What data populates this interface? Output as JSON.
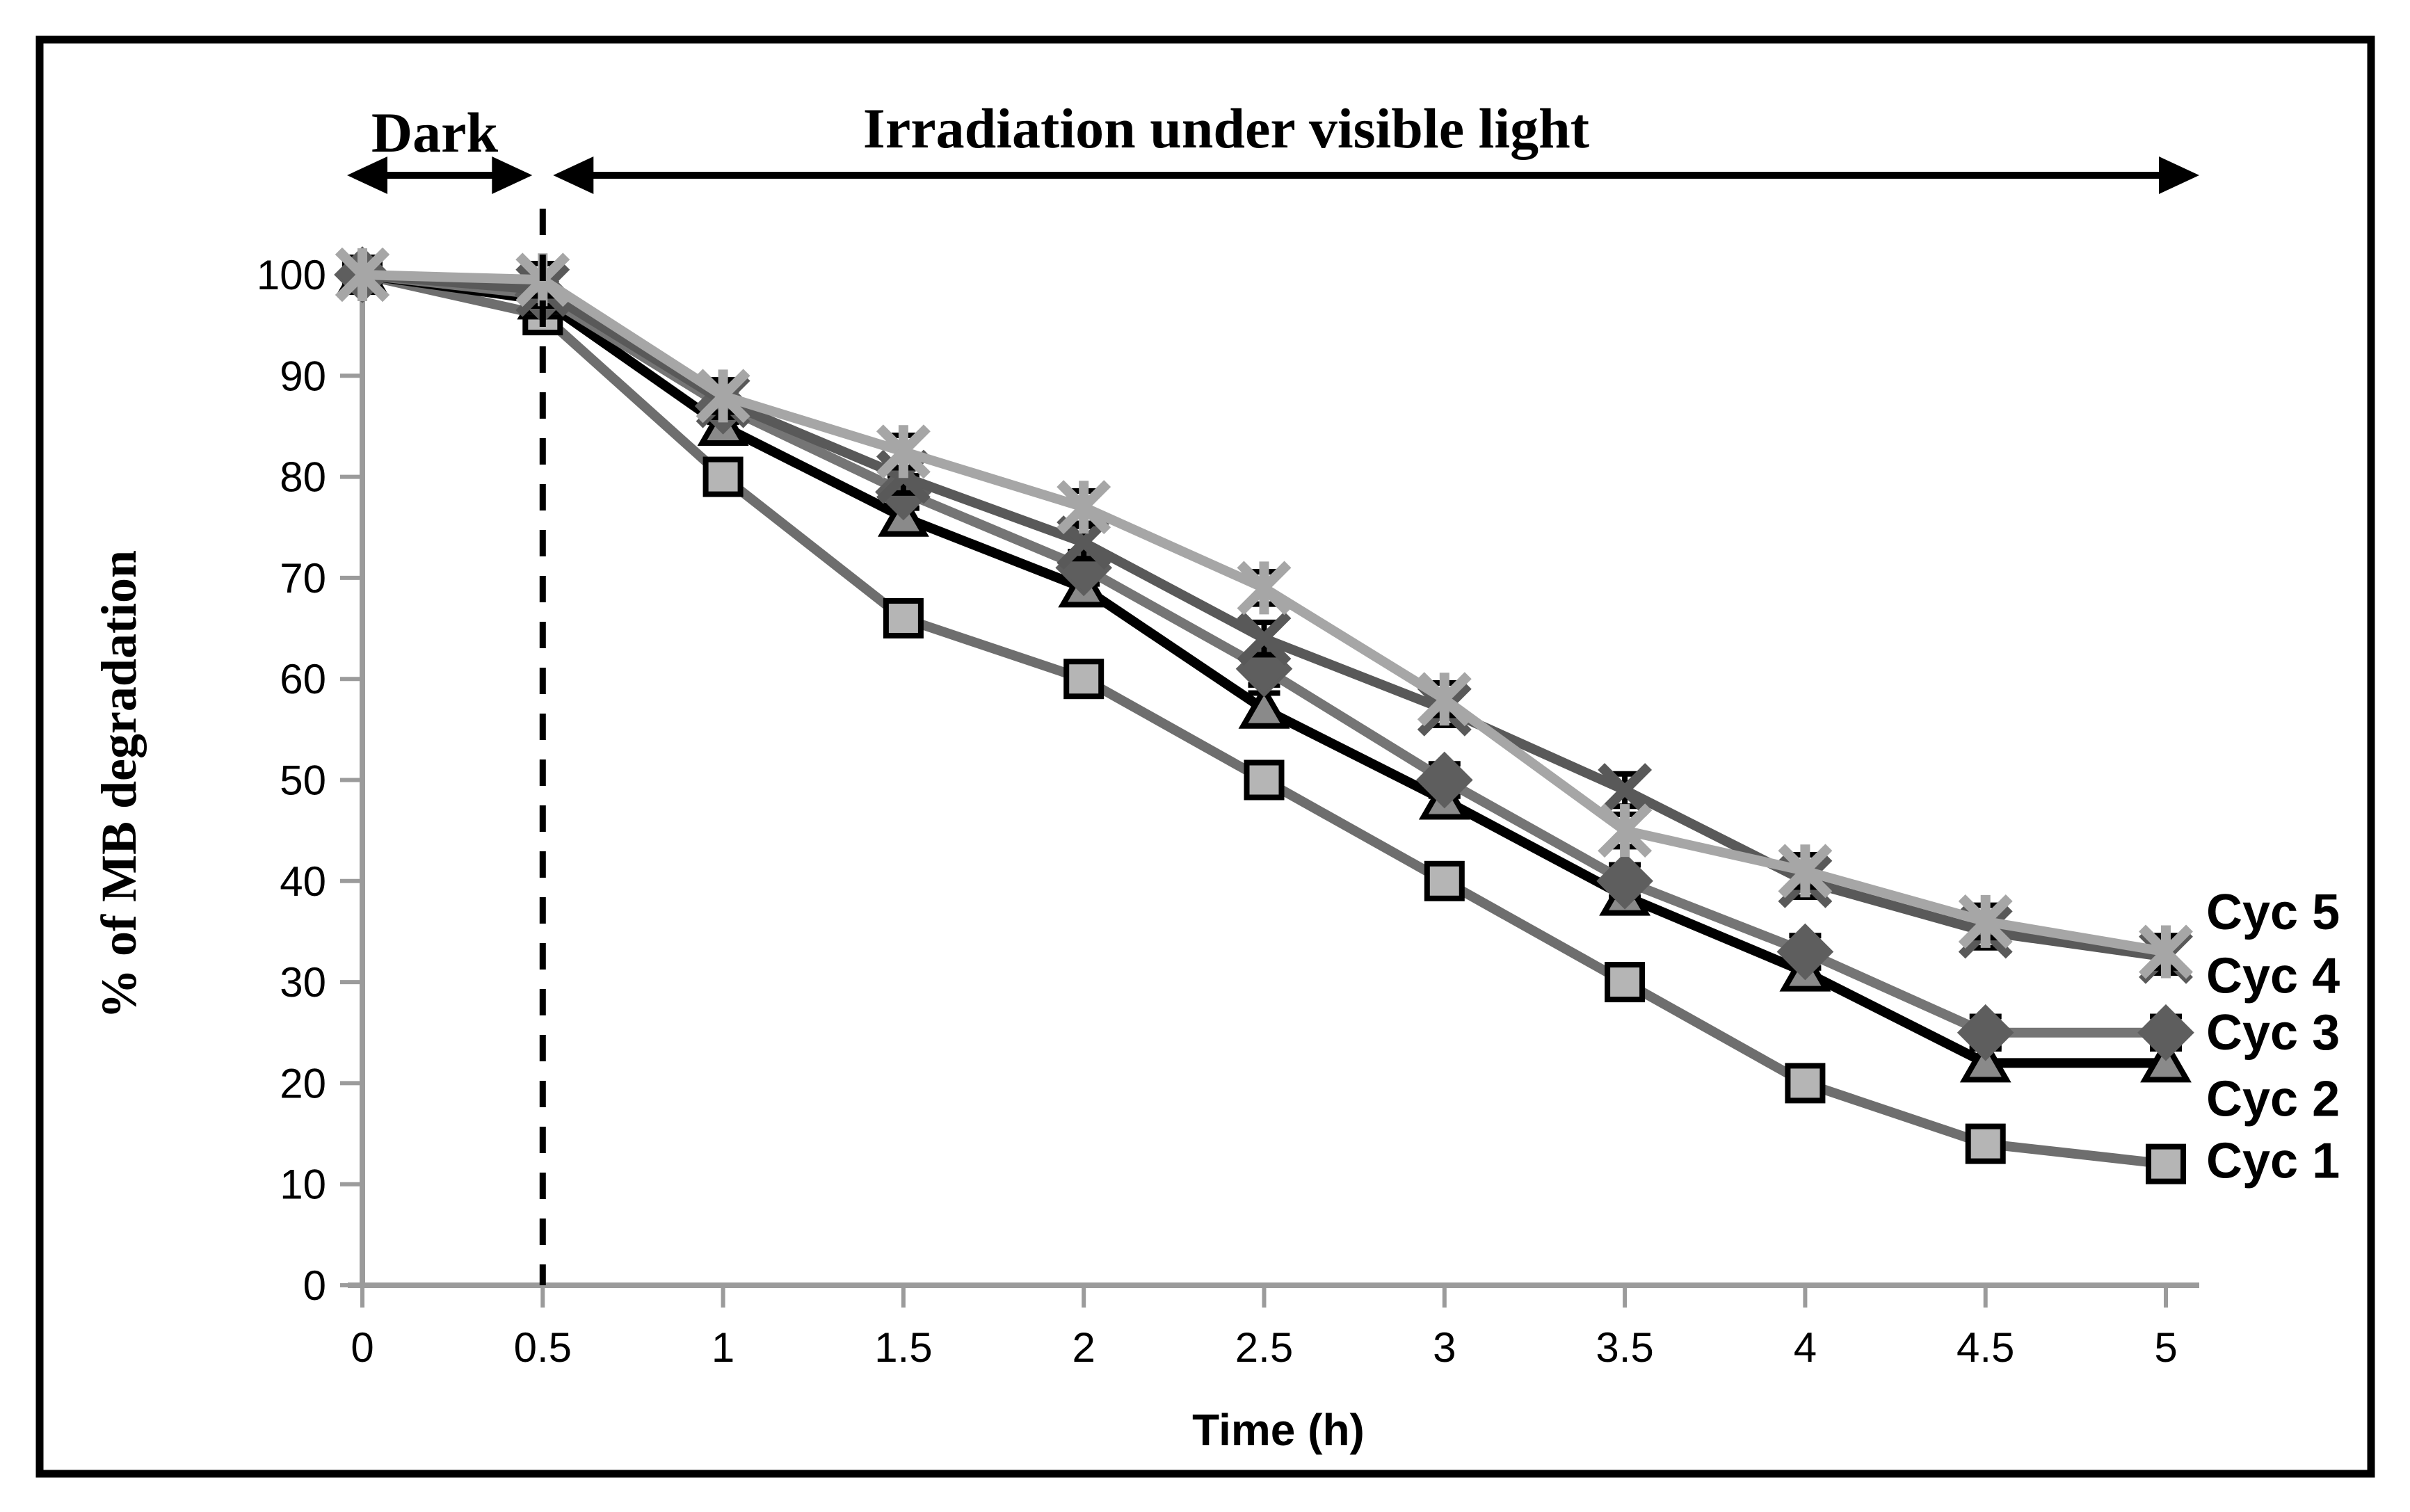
{
  "figure": {
    "ylabel": "% of MB degradation",
    "xlabel": "Time (h)",
    "annotations": {
      "dark_label": "Dark",
      "irradiation_label": "Irradiation under visible light"
    }
  },
  "chart_data": {
    "type": "line",
    "title": "",
    "xlabel": "Time (h)",
    "ylabel": "% of MB degradation",
    "x": [
      0,
      0.5,
      1,
      1.5,
      2,
      2.5,
      3,
      3.5,
      4,
      4.5,
      5
    ],
    "xtick_labels": [
      "0",
      "0.5",
      "1",
      "1.5",
      "2",
      "2.5",
      "3",
      "3.5",
      "4",
      "4.5",
      "5"
    ],
    "ytick_labels": [
      "0",
      "10",
      "20",
      "30",
      "40",
      "50",
      "60",
      "70",
      "80",
      "90",
      "100"
    ],
    "ylim": [
      0,
      100
    ],
    "xlim": [
      0,
      5
    ],
    "grid": false,
    "error_bar_plus_minus": 1.6,
    "dark_region_hours": [
      0,
      0.5
    ],
    "irradiation_region_hours": [
      0.5,
      5
    ],
    "dashed_divider_at_h": 0.5,
    "legend_position": "right-of-last-point",
    "axis_color": "#9b9b9b",
    "annotation_color": "#000000",
    "series": [
      {
        "name": "Cyc 1",
        "marker": "square",
        "line_color": "#6e6e6e",
        "marker_fill": "#b5b5b5",
        "marker_stroke": "#000000",
        "label_at_value": 12.3,
        "values": [
          100,
          96,
          80,
          66,
          60,
          50,
          40,
          30,
          20,
          14,
          12
        ]
      },
      {
        "name": "Cyc 2",
        "marker": "triangle",
        "line_color": "#000000",
        "marker_fill": "#8a8a8a",
        "marker_stroke": "#000000",
        "label_at_value": 18.4,
        "values": [
          100,
          97.5,
          85,
          76,
          69,
          57,
          48,
          38.5,
          31,
          22,
          22
        ]
      },
      {
        "name": "Cyc 3",
        "marker": "diamond",
        "line_color": "#757575",
        "marker_fill": "#5e5e5e",
        "marker_stroke": "#5e5e5e",
        "label_at_value": 25,
        "values": [
          100,
          98,
          87,
          78.5,
          71,
          61,
          50,
          40,
          33,
          25,
          25
        ]
      },
      {
        "name": "Cyc 4",
        "marker": "x",
        "line_color": "#595959",
        "marker_fill": "#595959",
        "marker_stroke": "#595959",
        "label_at_value": 30.6,
        "values": [
          100,
          98.5,
          87.5,
          80,
          73.5,
          64,
          57,
          49,
          40,
          35,
          32.5
        ]
      },
      {
        "name": "Cyc 5",
        "marker": "asterisk",
        "line_color": "#a6a6a6",
        "marker_fill": "#a6a6a6",
        "marker_stroke": "#a6a6a6",
        "label_at_value": 36.9,
        "values": [
          100,
          99.5,
          88,
          82.5,
          77,
          69,
          58,
          45,
          41,
          36,
          33
        ]
      }
    ]
  }
}
